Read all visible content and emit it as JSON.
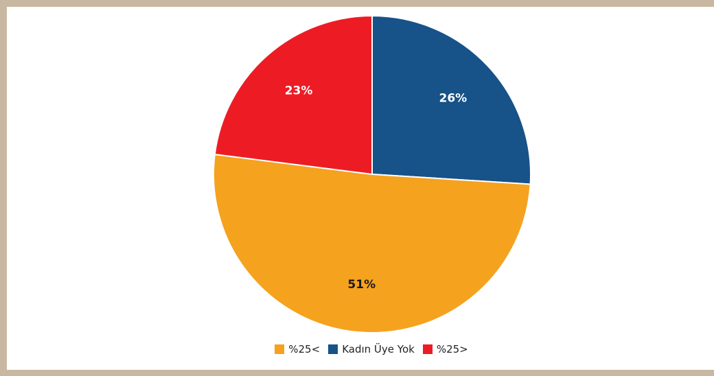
{
  "chart_data": {
    "type": "pie",
    "title": "",
    "start_angle_deg": 0,
    "direction": "clockwise",
    "slices": [
      {
        "label": "Kadın Üye Yok",
        "value": 26,
        "display": "26%",
        "color": "#175289",
        "label_color": "#ffffff"
      },
      {
        "label": "%25<",
        "value": 51,
        "display": "51%",
        "color": "#f5a21f",
        "label_color": "#1a1a1a"
      },
      {
        "label": "%25>",
        "value": 23,
        "display": "23%",
        "color": "#ed1c24",
        "label_color": "#ffffff"
      }
    ],
    "legend": {
      "position": "bottom",
      "entries": [
        {
          "label": "%25<",
          "color": "#f5a21f"
        },
        {
          "label": "Kadın Üye Yok",
          "color": "#175289"
        },
        {
          "label": "%25>",
          "color": "#ed1c24"
        }
      ]
    }
  }
}
